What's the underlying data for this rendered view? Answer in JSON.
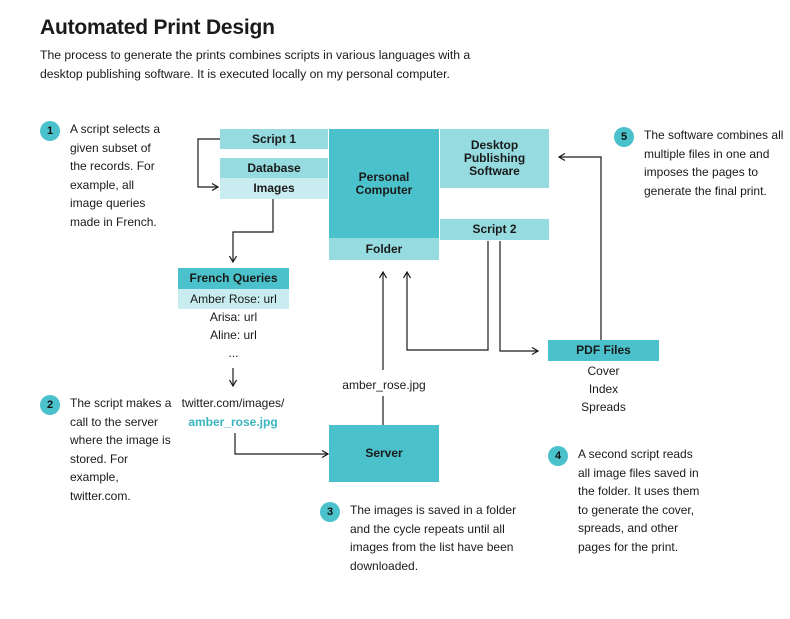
{
  "title": "Automated Print Design",
  "subtitle": "The process to generate the prints combines scripts in various languages with a desktop publishing software. It is executed locally on my personal computer.",
  "boxes": {
    "script1": "Script 1",
    "database": "Database",
    "images": "Images",
    "personal_computer": "Personal Computer",
    "folder": "Folder",
    "desktop_publishing": "Desktop Publishing Software",
    "script2": "Script 2",
    "french_queries": "French Queries",
    "amber_rose": "Amber Rose: url",
    "server": "Server",
    "pdf_files": "PDF Files"
  },
  "queries": [
    "Arisa: url",
    "Aline: url",
    "..."
  ],
  "pdf_items": [
    "Cover",
    "Index",
    "Spreads"
  ],
  "url": {
    "line1": "twitter.com/images/",
    "line2": "amber_rose.jpg"
  },
  "file_label": "amber_rose.jpg",
  "steps": [
    {
      "num": "1",
      "text": "A script selects a given subset of the records. For example, all image queries made in French."
    },
    {
      "num": "2",
      "text": "The script makes a call to the server where the image is stored. For example, twitter.com."
    },
    {
      "num": "3",
      "text": "The images is saved in a folder and the cycle repeats until all images from the list have been downloaded."
    },
    {
      "num": "4",
      "text": "A second script reads all image files saved in the folder. It uses them to generate the cover, spreads, and other pages for the print."
    },
    {
      "num": "5",
      "text": "The software combines all multiple files in one and imposes the pages to generate the final print."
    }
  ],
  "colors": {
    "dark": "#4bc2cb",
    "mid": "#95dbe0",
    "light": "#c8ecef",
    "accent_text": "#3bb5c0"
  }
}
